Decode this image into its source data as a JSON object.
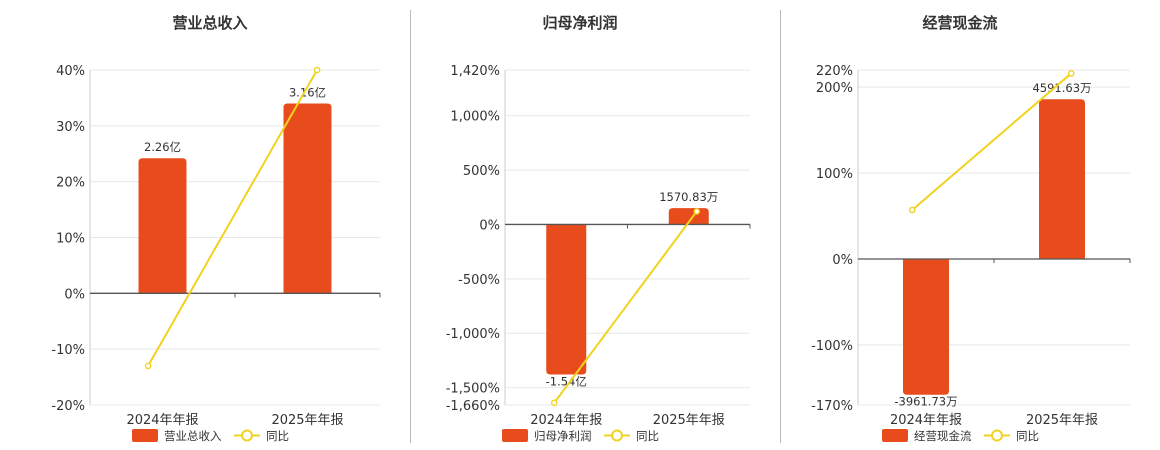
{
  "chart_data": [
    {
      "type": "bar",
      "title": "营业总收入",
      "categories": [
        "2024年年报",
        "2025年年报"
      ],
      "series": [
        {
          "name": "营业总收入",
          "type": "bar",
          "values": [
            24.2,
            34.0
          ],
          "labels": [
            "2.26亿",
            "3.16亿"
          ],
          "color": "#e84c1c"
        },
        {
          "name": "同比",
          "type": "line",
          "values": [
            -13.0,
            40.0
          ],
          "color": "#f1d21f"
        }
      ],
      "ylim": [
        -20,
        40
      ],
      "yticks": [
        40,
        30,
        20,
        10,
        0,
        -10,
        -20
      ],
      "ytick_labels": [
        "40%",
        "30%",
        "20%",
        "10%",
        "0%",
        "-10%",
        "-20%"
      ],
      "legend": "bottom"
    },
    {
      "type": "bar",
      "title": "归母净利润",
      "categories": [
        "2024年年报",
        "2025年年报"
      ],
      "series": [
        {
          "name": "归母净利润",
          "type": "bar",
          "values": [
            -1380,
            150
          ],
          "labels": [
            "-1.54亿",
            "1570.83万"
          ],
          "color": "#e84c1c"
        },
        {
          "name": "同比",
          "type": "line",
          "values": [
            -1640,
            120
          ],
          "color": "#f1d21f"
        }
      ],
      "ylim": [
        -1660,
        1420
      ],
      "yticks": [
        1420,
        1000,
        500,
        0,
        -500,
        -1000,
        -1500,
        -1660
      ],
      "ytick_labels": [
        "1,420%",
        "1,000%",
        "500%",
        "0%",
        "-500%",
        "-1,000%",
        "-1,500%",
        "-1,660%"
      ],
      "legend": "bottom"
    },
    {
      "type": "bar",
      "title": "经营现金流",
      "categories": [
        "2024年年报",
        "2025年年报"
      ],
      "series": [
        {
          "name": "经营现金流",
          "type": "bar",
          "values": [
            -158,
            186
          ],
          "labels": [
            "-3961.73万",
            "4591.63万"
          ],
          "color": "#e84c1c"
        },
        {
          "name": "同比",
          "type": "line",
          "values": [
            57,
            216
          ],
          "color": "#f1d21f"
        }
      ],
      "ylim": [
        -170,
        220
      ],
      "yticks": [
        220,
        200,
        100,
        0,
        -100,
        -170
      ],
      "ytick_labels": [
        "220%",
        "200%",
        "100%",
        "0%",
        "-100%",
        "-170%"
      ],
      "legend": "bottom"
    }
  ]
}
